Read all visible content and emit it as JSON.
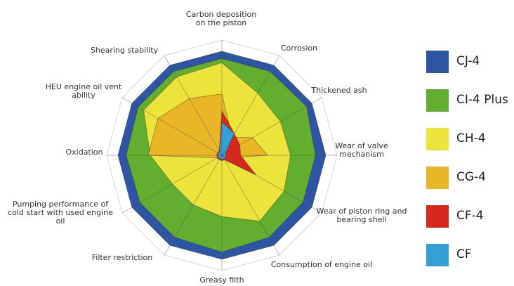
{
  "chart_data": {
    "type": "radar",
    "max": 10,
    "axes": [
      "Carbon deposition on the piston",
      "Corrosion",
      "Thickened ash",
      "Wear of valve mechanism",
      "Wear of piston ring and bearing shell",
      "Consumption of engine oil",
      "Greasy filth",
      "Filter restriction",
      "Pumping performance of cold start with used engine oil",
      "Oxidation",
      "HEU engine oil vent ability",
      "Shearing stability"
    ],
    "series": [
      {
        "name": "CJ-4",
        "color": "#2e55a3",
        "values": [
          10,
          10,
          10,
          10,
          10,
          10,
          10,
          10,
          10,
          10,
          10,
          10
        ]
      },
      {
        "name": "CI-4 Plus",
        "color": "#62ae2e",
        "values": [
          9.3,
          9.3,
          9.4,
          9.0,
          9.0,
          9.1,
          9.3,
          9.1,
          9.1,
          9.2,
          9.3,
          9.3
        ]
      },
      {
        "name": "CH-4",
        "color": "#ece43a",
        "values": [
          8.9,
          6.9,
          6.5,
          6.6,
          6.9,
          7.3,
          5.9,
          5.5,
          5.5,
          6.9,
          8.7,
          8.7
        ]
      },
      {
        "name": "CG-4",
        "color": "#e9b726",
        "values": [
          5.9,
          2.0,
          3.4,
          4.4,
          0.5,
          0.5,
          0.5,
          0.5,
          0.5,
          7.1,
          7.1,
          6.3
        ]
      },
      {
        "name": "CF-4",
        "color": "#d9261c",
        "values": [
          4.3,
          2.4,
          2.0,
          1.8,
          3.8,
          0.5,
          0.5,
          0.5,
          0.5,
          0.5,
          0.5,
          0.5
        ]
      },
      {
        "name": "CF",
        "color": "#33a0d8",
        "values": [
          3.2,
          2.4,
          0.4,
          0.4,
          0.4,
          0.4,
          0.4,
          0.4,
          0.4,
          0.4,
          0.4,
          0.4
        ]
      }
    ]
  },
  "labels": {
    "a0": [
      "Carbon deposition",
      "on the piston"
    ],
    "a1": [
      "Corrosion"
    ],
    "a2": [
      "Thickened ash"
    ],
    "a3": [
      "Wear of valve",
      "mechanism"
    ],
    "a4": [
      "Wear of piston ring and",
      "bearing shell"
    ],
    "a5": [
      "Consumption of engine oil"
    ],
    "a6": [
      "Greasy filth"
    ],
    "a7": [
      "Filter restriction"
    ],
    "a8": [
      "Pumping performance of",
      "cold start with used engine",
      "oil"
    ],
    "a9": [
      "Oxidation"
    ],
    "a10": [
      "HEU engine oil vent",
      "ability"
    ],
    "a11": [
      "Shearing stability"
    ]
  }
}
